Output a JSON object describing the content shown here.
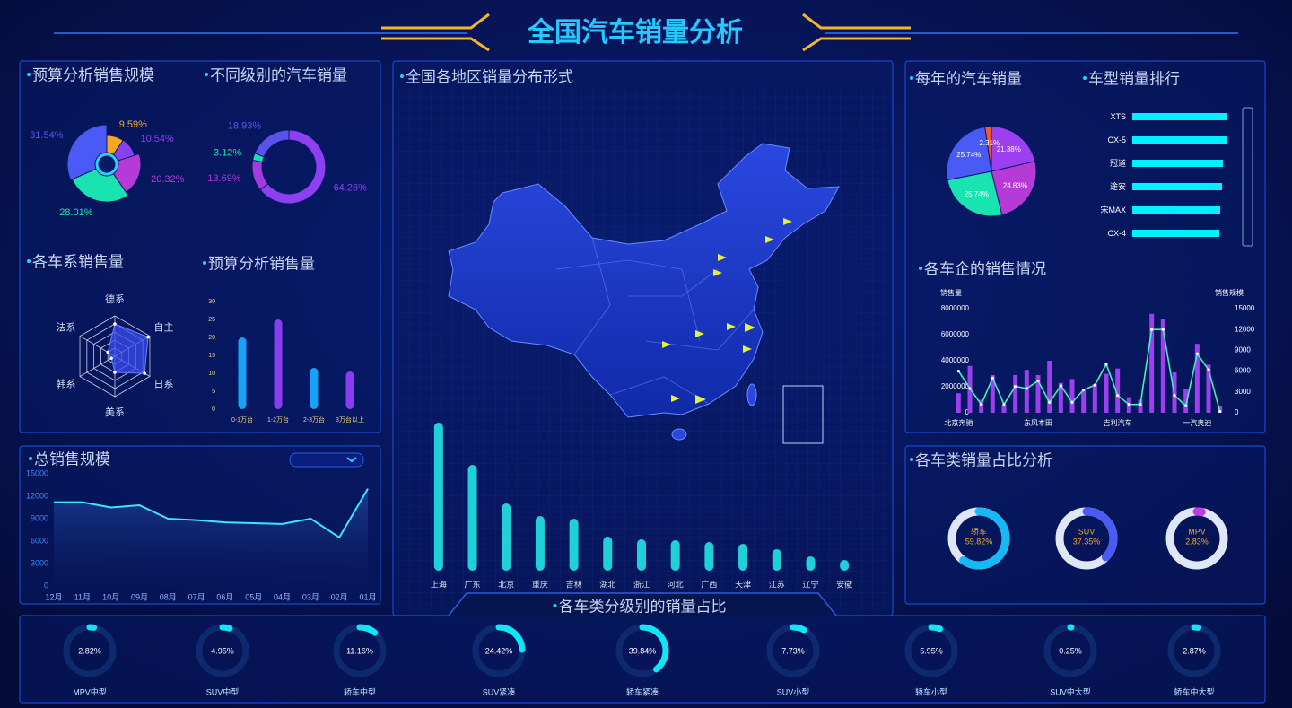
{
  "title": "全国汽车销量分析",
  "chart_data": [
    {
      "type": "pie",
      "style": "rose",
      "title": "预算分析销售规模",
      "values": [
        9.59,
        10.54,
        20.32,
        28.01,
        31.54
      ],
      "value_labels": [
        "9.59%",
        "10.54%",
        "20.32%",
        "28.01%",
        "31.54%"
      ],
      "colors": [
        "#f5a623",
        "#8a3ff0",
        "#b63bd6",
        "#19e3b1",
        "#4a5bf5"
      ]
    },
    {
      "type": "pie",
      "style": "donut",
      "title": "不同级别的汽车销量",
      "values": [
        64.26,
        13.69,
        3.12,
        18.93
      ],
      "value_labels": [
        "64.26%",
        "13.69%",
        "3.12%",
        "18.93%"
      ],
      "colors": [
        "#8f3ff2",
        "#a33be0",
        "#19e3b1",
        "#5b52ea"
      ]
    },
    {
      "type": "radar",
      "title": "各车系销售量",
      "categories": [
        "德系",
        "自主",
        "日系",
        "美系",
        "韩系",
        "法系"
      ],
      "values": [
        80,
        95,
        85,
        40,
        10,
        20
      ],
      "rlim": [
        0,
        100
      ],
      "color": "#3a4cf0"
    },
    {
      "type": "bar",
      "title": "预算分析销售量",
      "categories": [
        "0-1万台",
        "1-2万台",
        "2-3万台",
        "3万台以上"
      ],
      "values": [
        20,
        25,
        11.5,
        10.5
      ],
      "colors": [
        "#1aa0f5",
        "#8a3cf0",
        "#1aa0f5",
        "#8a3cf0"
      ],
      "ylim": [
        0,
        30
      ],
      "yticks": [
        0,
        5,
        10,
        15,
        20,
        25,
        30
      ]
    },
    {
      "type": "line",
      "title": "总销售规模",
      "categories": [
        "12月",
        "11月",
        "10月",
        "09月",
        "08月",
        "07月",
        "06月",
        "05月",
        "04月",
        "03月",
        "02月",
        "01月"
      ],
      "values": [
        11200,
        11200,
        10500,
        10800,
        9000,
        8800,
        8500,
        8400,
        8300,
        9000,
        6500,
        13000
      ],
      "color": "#3fe6f5",
      "ylim": [
        0,
        15000
      ],
      "yticks": [
        0,
        3000,
        6000,
        9000,
        12000,
        15000
      ]
    },
    {
      "type": "bar",
      "title": "全国各地区销量分布形式",
      "categories": [
        "上海",
        "广东",
        "北京",
        "重庆",
        "吉林",
        "湖北",
        "浙江",
        "河北",
        "广西",
        "天津",
        "江苏",
        "辽宁",
        "安徽"
      ],
      "values": [
        165,
        118,
        75,
        61,
        58,
        38,
        35,
        34,
        32,
        30,
        24,
        16,
        12
      ],
      "color": "#1fd0d8"
    },
    {
      "type": "pie",
      "style": "pie",
      "title": "每年的汽车销量",
      "values": [
        21.38,
        24.83,
        25.74,
        25.74,
        2.31
      ],
      "value_labels": [
        "21.38%",
        "24.83%",
        "25.74%",
        "25.74%",
        "2.31%"
      ],
      "colors": [
        "#9b3ff0",
        "#b63bd6",
        "#19e3b1",
        "#4a5bf5",
        "#f05a28"
      ]
    },
    {
      "type": "bar",
      "orientation": "horizontal",
      "title": "车型销量排行",
      "categories": [
        "XTS",
        "CX-5",
        "冠道",
        "途安",
        "宋MAX",
        "CX-4"
      ],
      "values": [
        106,
        105,
        101,
        100,
        98,
        97
      ],
      "color": "#00f0ff"
    },
    {
      "type": "combo",
      "title": "各车企的销售情况",
      "y_label": "销售量",
      "y2_label": "销售规模",
      "categories": [
        "北京奔驰",
        null,
        null,
        null,
        null,
        null,
        null,
        "东风本田",
        null,
        null,
        null,
        null,
        null,
        null,
        "吉利汽车",
        null,
        null,
        null,
        null,
        null,
        null,
        "一汽奥迪",
        null,
        null
      ],
      "series": [
        {
          "type": "bar",
          "color": "#9b3ff0",
          "values": [
            1500000,
            3600000,
            1000000,
            2900000,
            600000,
            2900000,
            3300000,
            2900000,
            4000000,
            2300000,
            2600000,
            1700000,
            2200000,
            3000000,
            3400000,
            1200000,
            1000000,
            7600000,
            7200000,
            3100000,
            1800000,
            5300000,
            3700000,
            500000
          ]
        },
        {
          "type": "line",
          "axis": "y2",
          "color": "#3ff0c0",
          "values": [
            6000,
            3500,
            1200,
            5000,
            1200,
            3800,
            3500,
            4600,
            1500,
            3900,
            1500,
            3300,
            4000,
            7000,
            2500,
            1200,
            1200,
            12000,
            12000,
            2500,
            1000,
            8500,
            6200,
            200
          ]
        }
      ],
      "ylim": [
        0,
        8000000
      ],
      "yticks": [
        0,
        2000000,
        4000000,
        6000000,
        8000000
      ],
      "y2lim": [
        0,
        15000
      ],
      "y2ticks": [
        0,
        3000,
        6000,
        9000,
        12000,
        15000
      ]
    },
    {
      "type": "gauge",
      "title": "各车类销量占比分析",
      "categories": [
        "轿车",
        "SUV",
        "MPV"
      ],
      "values": [
        59.82,
        37.35,
        2.83
      ],
      "value_labels": [
        "59.82%",
        "37.35%",
        "2.83%"
      ],
      "colors": [
        "#16b8f5",
        "#4a5bf5",
        "#c13be8"
      ],
      "ylim": [
        0,
        100
      ]
    },
    {
      "type": "gauge",
      "title": "各车类分级别的销量占比",
      "categories": [
        "MPV中型",
        "SUV中型",
        "轿车中型",
        "SUV紧凑",
        "轿车紧凑",
        "SUV小型",
        "轿车小型",
        "SUV中大型",
        "轿车中大型"
      ],
      "values": [
        2.82,
        4.95,
        11.16,
        24.42,
        39.84,
        7.73,
        5.95,
        0.25,
        2.87
      ],
      "value_labels": [
        "2.82%",
        "4.95%",
        "11.16%",
        "24.42%",
        "39.84%",
        "7.73%",
        "5.95%",
        "0.25%",
        "2.87%"
      ],
      "color": "#12e6f5",
      "ylim": [
        0,
        100
      ]
    }
  ]
}
